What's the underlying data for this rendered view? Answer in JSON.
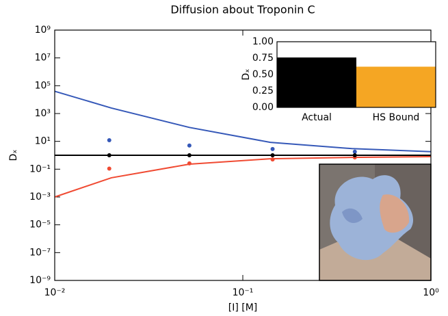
{
  "chart_data": [
    {
      "type": "loglog",
      "title": "Diffusion about Troponin C",
      "xlabel": "[I] [M]",
      "ylabel": "Dₓ",
      "xlim": [
        0.01,
        1
      ],
      "ylim": [
        1e-09,
        1000000000.0
      ],
      "xticks": [
        {
          "value": 0.01,
          "label": "10⁻²"
        },
        {
          "value": 0.1,
          "label": "10⁻¹"
        },
        {
          "value": 1,
          "label": "10⁰"
        }
      ],
      "yticks": [
        {
          "value": 1e-09,
          "label": "10⁻⁹"
        },
        {
          "value": 1e-07,
          "label": "10⁻⁷"
        },
        {
          "value": 1e-05,
          "label": "10⁻⁵"
        },
        {
          "value": 0.001,
          "label": "10⁻³"
        },
        {
          "value": 0.1,
          "label": "10⁻¹"
        },
        {
          "value": 10,
          "label": "10¹"
        },
        {
          "value": 1000,
          "label": "10³"
        },
        {
          "value": 100000,
          "label": "10⁵"
        },
        {
          "value": 10000000,
          "label": "10⁷"
        },
        {
          "value": 1000000000,
          "label": "10⁹"
        }
      ],
      "series": [
        {
          "mode": "line",
          "color": "#3558b8",
          "x": [
            0.01,
            0.02,
            0.052,
            0.14,
            0.38,
            1
          ],
          "values": [
            40000,
            2500,
            100,
            8.5,
            3,
            1.8
          ]
        },
        {
          "mode": "line",
          "color": "#f04a32",
          "x": [
            0.01,
            0.02,
            0.052,
            0.14,
            0.38,
            1
          ],
          "values": [
            0.001,
            0.024,
            0.23,
            0.56,
            0.7,
            0.8
          ]
        },
        {
          "mode": "line",
          "color": "#000000",
          "x": [
            0.01,
            1
          ],
          "values": [
            1,
            1
          ]
        },
        {
          "mode": "scatter",
          "color": "#3558b8",
          "x": [
            0.0195,
            0.052,
            0.144,
            0.394
          ],
          "values": [
            12,
            5,
            2.8,
            1.8
          ]
        },
        {
          "mode": "scatter",
          "color": "#f04a32",
          "x": [
            0.0195,
            0.052,
            0.144,
            0.394
          ],
          "values": [
            0.11,
            0.26,
            0.5,
            0.7
          ]
        },
        {
          "mode": "scatter",
          "color": "#000000",
          "x": [
            0.0195,
            0.052,
            0.144,
            0.394
          ],
          "values": [
            1,
            1,
            1,
            1
          ]
        }
      ]
    },
    {
      "type": "bar",
      "ylabel": "Dₓ",
      "categories": [
        "Actual",
        "HS Bound"
      ],
      "values": [
        0.76,
        0.62
      ],
      "colors": [
        "#000000",
        "#f5a623"
      ],
      "ylim": [
        0,
        1
      ],
      "yticks": [
        {
          "value": 0,
          "label": "0.00"
        },
        {
          "value": 0.25,
          "label": "0.25"
        },
        {
          "value": 0.5,
          "label": "0.50"
        },
        {
          "value": 0.75,
          "label": "0.75"
        },
        {
          "value": 1,
          "label": "1.00"
        }
      ]
    }
  ]
}
